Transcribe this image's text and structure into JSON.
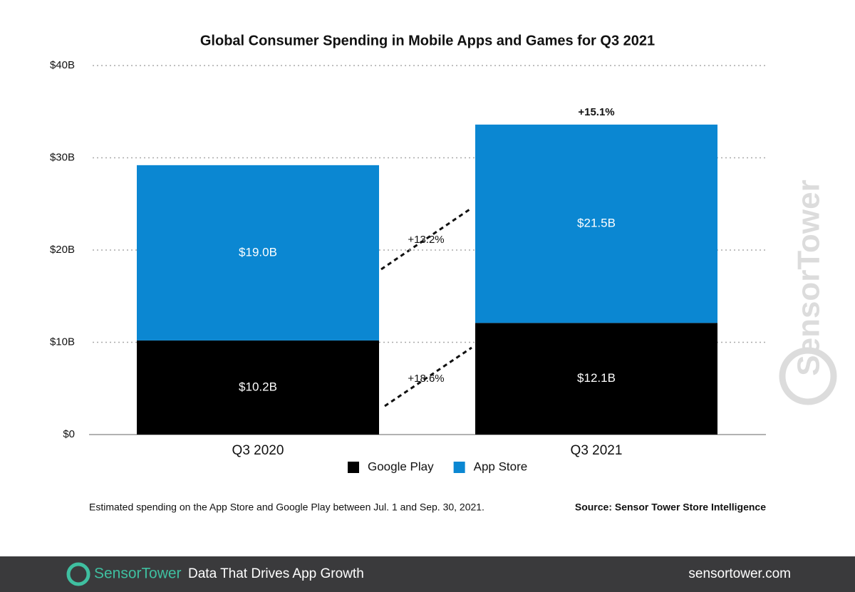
{
  "chart_data": {
    "type": "stacked-bar",
    "title": "Global Consumer Spending in Mobile Apps and Games for Q3 2021",
    "categories": [
      "Q3 2020",
      "Q3 2021"
    ],
    "series": [
      {
        "name": "Google Play",
        "color": "#000000",
        "values": [
          10.2,
          12.1
        ],
        "value_labels": [
          "$10.2B",
          "$12.1B"
        ]
      },
      {
        "name": "App Store",
        "color": "#0b87d2",
        "values": [
          19.0,
          21.5
        ],
        "value_labels": [
          "$19.0B",
          "$21.5B"
        ]
      }
    ],
    "ylim": [
      0,
      40
    ],
    "yticks": [
      {
        "value": 0,
        "label": "$0"
      },
      {
        "value": 10,
        "label": "$10B"
      },
      {
        "value": 20,
        "label": "$20B"
      },
      {
        "value": 30,
        "label": "$30B"
      },
      {
        "value": 40,
        "label": "$40B"
      }
    ],
    "grid": true,
    "legend": "bottom",
    "annotations": [
      "+13.2%",
      "+18.6%",
      "+15.1%"
    ],
    "note": "Estimated spending on the App Store and Google Play between Jul. 1 and Sep. 30, 2021.",
    "source": "Source: Sensor Tower Store Intelligence",
    "watermark": "SensorTower"
  },
  "footer": {
    "brand": "SensorTower",
    "tagline": "Data That Drives App Growth",
    "url": "sensortower.com"
  }
}
